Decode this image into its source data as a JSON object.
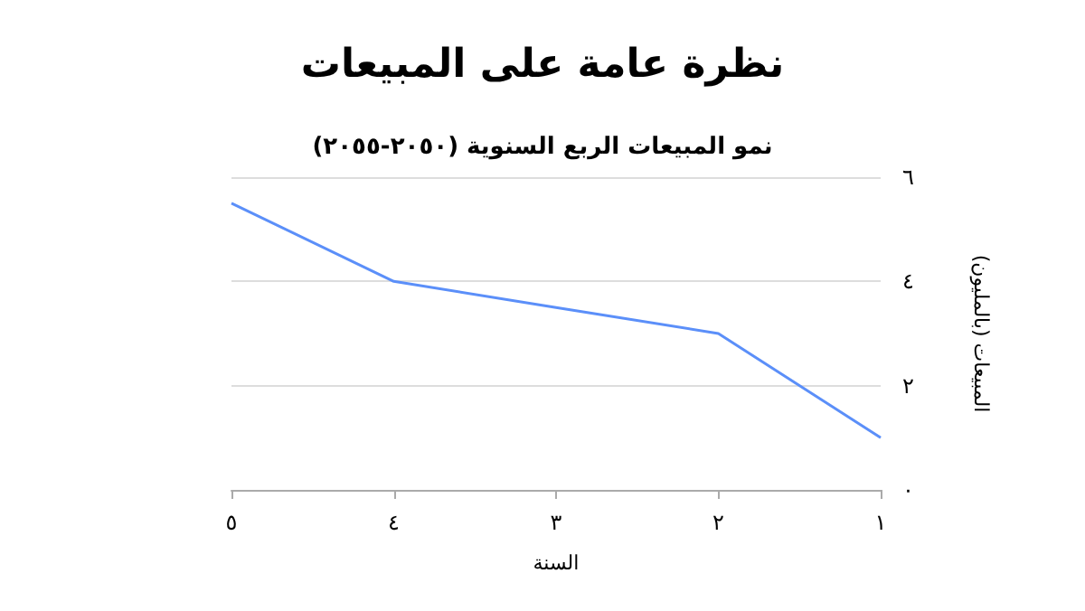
{
  "chart_data": {
    "type": "line",
    "title": "نظرة عامة على المبيعات",
    "subtitle": "نمو المبيعات الربع السنوية (٢٠٥٠-٢٠٥٥)",
    "xlabel": "السنة",
    "ylabel": "المبيعات (بالمليون)",
    "x": [
      1,
      2,
      3,
      4,
      5
    ],
    "series": [
      {
        "color": "#5b8ff9",
        "values": [
          1,
          3,
          3.5,
          4,
          5.5
        ]
      }
    ],
    "xlim": [
      5,
      1
    ],
    "xticks": [
      {
        "value": 5,
        "label": "٥"
      },
      {
        "value": 4,
        "label": "٤"
      },
      {
        "value": 3,
        "label": "٣"
      },
      {
        "value": 2,
        "label": "٢"
      },
      {
        "value": 1,
        "label": "١"
      }
    ],
    "ylim": [
      0,
      6
    ],
    "yticks": [
      {
        "value": 0,
        "label": "٠"
      },
      {
        "value": 2,
        "label": "٢"
      },
      {
        "value": 4,
        "label": "٤"
      },
      {
        "value": 6,
        "label": "٦"
      }
    ],
    "grid": "y",
    "marker": "none",
    "line_style": "solid"
  }
}
